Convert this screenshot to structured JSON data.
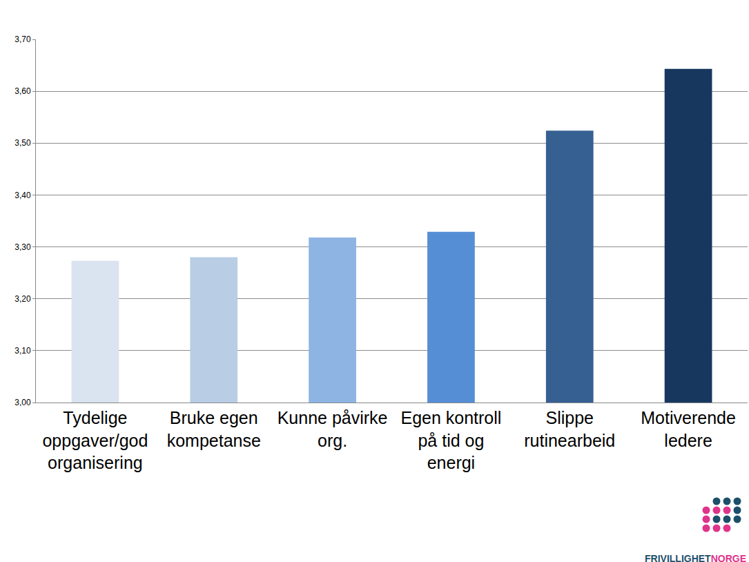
{
  "chart_data": {
    "type": "bar",
    "categories": [
      "Tydelige oppgaver/god organisering",
      "Bruke egen kompetanse",
      "Kunne påvirke org.",
      "Egen kontroll på tid og energi",
      "Slippe rutinearbeid",
      "Motiverende ledere"
    ],
    "values": [
      3.273,
      3.28,
      3.318,
      3.329,
      3.524,
      3.643
    ],
    "colors": [
      "#dae3f0",
      "#b9cde5",
      "#8eb4e3",
      "#558ed5",
      "#366092",
      "#17375e"
    ],
    "ylim": [
      3.0,
      3.7
    ],
    "yticks": [
      {
        "value": 3.0,
        "label": "3,00"
      },
      {
        "value": 3.1,
        "label": "3,10"
      },
      {
        "value": 3.2,
        "label": "3,20"
      },
      {
        "value": 3.3,
        "label": "3,30"
      },
      {
        "value": 3.4,
        "label": "3,40"
      },
      {
        "value": 3.5,
        "label": "3,50"
      },
      {
        "value": 3.6,
        "label": "3,60"
      },
      {
        "value": 3.7,
        "label": "3,70"
      }
    ],
    "grid": true,
    "annotations": [
      "FRIVILLIGHET",
      "NORGE"
    ]
  }
}
